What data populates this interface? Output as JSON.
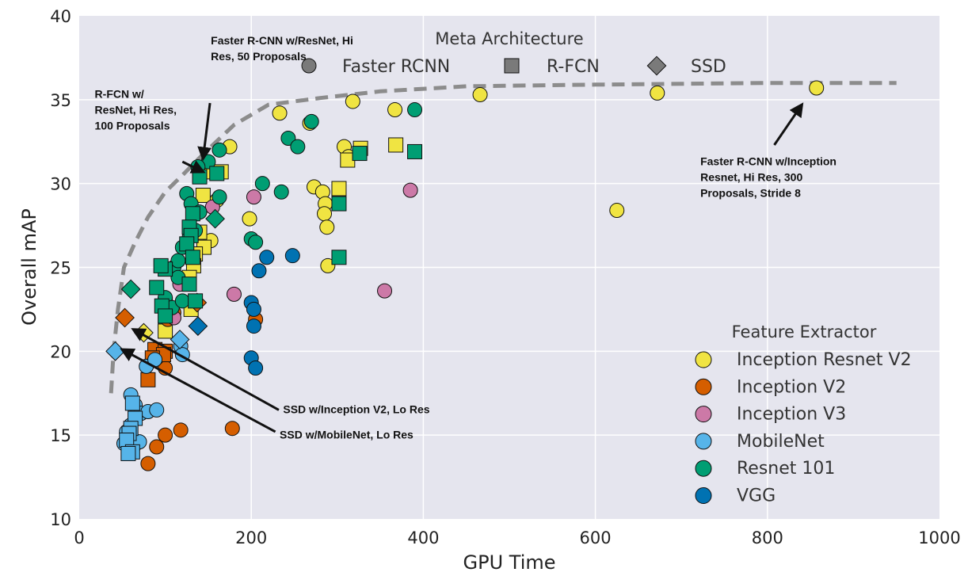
{
  "chart_data": {
    "type": "scatter",
    "xlabel": "GPU Time",
    "ylabel": "Overall mAP",
    "xlim": [
      0,
      1000
    ],
    "ylim": [
      10,
      40
    ],
    "xticks": [
      "0",
      "200",
      "400",
      "600",
      "800",
      "1000"
    ],
    "yticks": [
      "10",
      "15",
      "20",
      "25",
      "30",
      "35",
      "40"
    ],
    "grid": true,
    "colors": {
      "Inception Resnet V2": "#f0e442",
      "Inception V2": "#d55e00",
      "Inception V3": "#cc79a7",
      "MobileNet": "#56b4e9",
      "Resnet 101": "#009e73",
      "VGG": "#0072b2"
    },
    "meta_legend": {
      "title": "Meta Architecture",
      "placement": "top-center",
      "items": [
        {
          "label": "Faster RCNN",
          "marker": "circle"
        },
        {
          "label": "R-FCN",
          "marker": "square"
        },
        {
          "label": "SSD",
          "marker": "diamond"
        }
      ]
    },
    "feature_legend": {
      "title": "Feature Extractor",
      "placement": "lower-right",
      "items": [
        "Inception Resnet V2",
        "Inception V2",
        "Inception V3",
        "MobileNet",
        "Resnet 101",
        "VGG"
      ]
    },
    "frontier": {
      "x": [
        37,
        40,
        45,
        52,
        65,
        80,
        100,
        120,
        145,
        180,
        220,
        280,
        350,
        450,
        600,
        800,
        950
      ],
      "y": [
        17.5,
        20,
        22.5,
        25,
        26.5,
        28,
        29.5,
        30.5,
        31.8,
        33.5,
        34.7,
        35.1,
        35.5,
        35.8,
        35.9,
        36,
        36
      ]
    },
    "annotations": [
      {
        "text": [
          "Faster R-CNN w/ResNet, Hi",
          "Res, 50 Proposals"
        ],
        "x": 153,
        "y": 38.3,
        "arrow_from": [
          152,
          34.8
        ],
        "arrow_to": [
          144,
          31.5
        ]
      },
      {
        "text": [
          "R-FCN w/",
          "ResNet, Hi Res,",
          "100 Proposals"
        ],
        "x": 18,
        "y": 35.1,
        "arrow_from": [
          120,
          31.3
        ],
        "arrow_to": [
          144,
          30.7
        ]
      },
      {
        "text": [
          "Faster R-CNN w/Inception",
          "Resnet, Hi Res, 300",
          "Proposals, Stride 8"
        ],
        "x": 722,
        "y": 31.1,
        "arrow_from": [
          808,
          32.3
        ],
        "arrow_to": [
          840,
          34.7
        ]
      },
      {
        "text": [
          "SSD w/Inception V2, Lo Res"
        ],
        "x": 237,
        "y": 16.3,
        "arrow_from": [
          232,
          16.5
        ],
        "arrow_to": [
          63,
          21.3
        ]
      },
      {
        "text": [
          "SSD w/MobileNet, Lo Res"
        ],
        "x": 233,
        "y": 14.8,
        "arrow_from": [
          228,
          15.2
        ],
        "arrow_to": [
          50,
          20.1
        ]
      }
    ],
    "series": [
      {
        "name": "Inception Resnet V2",
        "marker": "circle",
        "points": [
          [
            175,
            32.2
          ],
          [
            160,
            29.0
          ],
          [
            153,
            26.6
          ],
          [
            268,
            33.6
          ],
          [
            233,
            34.2
          ],
          [
            318,
            34.9
          ],
          [
            367,
            34.4
          ],
          [
            466,
            35.3
          ],
          [
            672,
            35.4
          ],
          [
            857,
            35.7
          ],
          [
            625,
            28.4
          ],
          [
            198,
            27.9
          ],
          [
            273,
            29.8
          ],
          [
            283,
            29.5
          ],
          [
            286,
            28.8
          ],
          [
            285,
            28.2
          ],
          [
            288,
            27.4
          ],
          [
            289,
            25.1
          ],
          [
            308,
            32.2
          ],
          [
            313,
            31.6
          ]
        ]
      },
      {
        "name": "Inception Resnet V2",
        "marker": "square",
        "points": [
          [
            145,
            30.8
          ],
          [
            150,
            30.7
          ],
          [
            165,
            30.7
          ],
          [
            144,
            29.3
          ],
          [
            140,
            27.1
          ],
          [
            145,
            26.2
          ],
          [
            135,
            25.8
          ],
          [
            133,
            25.1
          ],
          [
            128,
            24.4
          ],
          [
            100,
            22.8
          ],
          [
            107,
            22.4
          ],
          [
            100,
            21.2
          ],
          [
            130,
            22.5
          ],
          [
            312,
            31.4
          ],
          [
            327,
            32.1
          ],
          [
            368,
            32.3
          ],
          [
            302,
            29.7
          ]
        ]
      },
      {
        "name": "Inception Resnet V2",
        "marker": "diamond",
        "points": [
          [
            75,
            21.1
          ]
        ]
      },
      {
        "name": "Inception V2",
        "marker": "circle",
        "points": [
          [
            80,
            13.3
          ],
          [
            90,
            14.3
          ],
          [
            100,
            15.0
          ],
          [
            118,
            15.3
          ],
          [
            178,
            15.4
          ],
          [
            100,
            19.0
          ],
          [
            90,
            19.6
          ],
          [
            205,
            21.9
          ],
          [
            103,
            21.9
          ],
          [
            110,
            22.3
          ]
        ]
      },
      {
        "name": "Inception V2",
        "marker": "square",
        "points": [
          [
            80,
            18.3
          ],
          [
            88,
            20.1
          ],
          [
            100,
            20.0
          ],
          [
            98,
            19.8
          ],
          [
            85,
            19.6
          ]
        ]
      },
      {
        "name": "Inception V2",
        "marker": "diamond",
        "points": [
          [
            53,
            22.0
          ],
          [
            137,
            22.9
          ]
        ]
      },
      {
        "name": "Inception V3",
        "marker": "circle",
        "points": [
          [
            203,
            29.2
          ],
          [
            385,
            29.6
          ],
          [
            180,
            23.4
          ],
          [
            355,
            23.6
          ],
          [
            155,
            28.6
          ],
          [
            117,
            24.0
          ],
          [
            110,
            22.0
          ]
        ]
      },
      {
        "name": "MobileNet",
        "marker": "circle",
        "points": [
          [
            60,
            17.4
          ],
          [
            65,
            16.8
          ],
          [
            72,
            16.3
          ],
          [
            80,
            16.4
          ],
          [
            90,
            16.5
          ],
          [
            60,
            15.6
          ],
          [
            55,
            15.2
          ],
          [
            52,
            14.5
          ],
          [
            63,
            14.3
          ],
          [
            70,
            14.6
          ],
          [
            78,
            19.1
          ],
          [
            88,
            19.5
          ],
          [
            118,
            20.3
          ],
          [
            120,
            19.8
          ]
        ]
      },
      {
        "name": "MobileNet",
        "marker": "square",
        "points": [
          [
            62,
            16.9
          ],
          [
            65,
            16.0
          ],
          [
            60,
            15.4
          ],
          [
            58,
            15.1
          ],
          [
            55,
            14.7
          ],
          [
            62,
            14.0
          ],
          [
            57,
            13.9
          ]
        ]
      },
      {
        "name": "MobileNet",
        "marker": "diamond",
        "points": [
          [
            42,
            20.0
          ],
          [
            117,
            20.7
          ]
        ]
      },
      {
        "name": "Resnet 101",
        "marker": "circle",
        "points": [
          [
            150,
            31.3
          ],
          [
            163,
            32.0
          ],
          [
            243,
            32.7
          ],
          [
            254,
            32.2
          ],
          [
            270,
            33.7
          ],
          [
            390,
            34.4
          ],
          [
            138,
            31.0
          ],
          [
            163,
            29.2
          ],
          [
            125,
            29.4
          ],
          [
            130,
            28.8
          ],
          [
            140,
            28.3
          ],
          [
            213,
            30.0
          ],
          [
            235,
            29.5
          ],
          [
            200,
            26.7
          ],
          [
            205,
            26.5
          ],
          [
            110,
            25.0
          ],
          [
            115,
            25.4
          ],
          [
            120,
            26.2
          ],
          [
            128,
            26.8
          ],
          [
            135,
            27.2
          ],
          [
            100,
            23.2
          ],
          [
            108,
            22.6
          ],
          [
            120,
            23.0
          ],
          [
            115,
            24.4
          ]
        ]
      },
      {
        "name": "Resnet 101",
        "marker": "square",
        "points": [
          [
            140,
            30.4
          ],
          [
            160,
            30.6
          ],
          [
            132,
            28.2
          ],
          [
            128,
            27.4
          ],
          [
            130,
            26.9
          ],
          [
            125,
            26.4
          ],
          [
            132,
            25.6
          ],
          [
            100,
            24.9
          ],
          [
            95,
            25.1
          ],
          [
            90,
            23.8
          ],
          [
            96,
            22.7
          ],
          [
            100,
            22.1
          ],
          [
            128,
            24.0
          ],
          [
            135,
            23.0
          ],
          [
            326,
            31.8
          ],
          [
            390,
            31.9
          ],
          [
            302,
            28.8
          ],
          [
            302,
            25.6
          ]
        ]
      },
      {
        "name": "Resnet 101",
        "marker": "diamond",
        "points": [
          [
            60,
            23.7
          ],
          [
            158,
            27.9
          ]
        ]
      },
      {
        "name": "VGG",
        "marker": "circle",
        "points": [
          [
            218,
            25.6
          ],
          [
            248,
            25.7
          ],
          [
            209,
            24.8
          ],
          [
            200,
            22.9
          ],
          [
            203,
            22.5
          ],
          [
            203,
            21.5
          ],
          [
            200,
            19.6
          ],
          [
            205,
            19.0
          ]
        ]
      },
      {
        "name": "VGG",
        "marker": "diamond",
        "points": [
          [
            138,
            21.5
          ]
        ]
      }
    ]
  }
}
